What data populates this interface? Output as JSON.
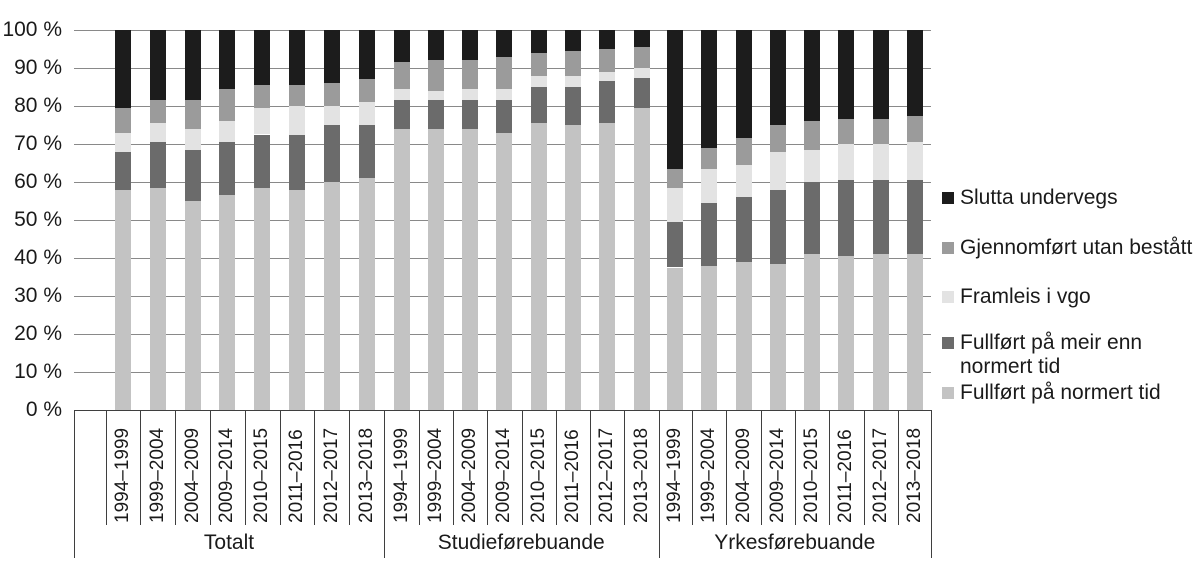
{
  "chart_data": {
    "type": "bar",
    "variant": "100-percent-stacked-column",
    "ylim": [
      0,
      100
    ],
    "grid": true,
    "yticks": [
      "0 %",
      "10 %",
      "20 %",
      "30 %",
      "40 %",
      "50 %",
      "60 %",
      "70 %",
      "80 %",
      "90 %",
      "100 %"
    ],
    "categories": [
      "1994–1999",
      "1999–2004",
      "2004–2009",
      "2009–2014",
      "2010–2015",
      "2011–2016",
      "2012–2017",
      "2013–2018"
    ],
    "colors": {
      "normert": "#c3c3c3",
      "meir": "#6b6b6b",
      "framleis": "#e3e3e3",
      "utan": "#9b9b9b",
      "slutta": "#1c1c1c"
    },
    "series_names": {
      "normert": "Fullført på normert tid",
      "meir": "Fullført på meir enn normert tid",
      "framleis": "Framleis i vgo",
      "utan": "Gjennomført utan bestått",
      "slutta": "Slutta undervegs"
    },
    "stack_order_bottom_to_top": [
      "normert",
      "meir",
      "framleis",
      "utan",
      "slutta"
    ],
    "groups": [
      {
        "label": "Totalt",
        "series": {
          "normert": [
            58,
            58.5,
            55,
            56.5,
            58.5,
            58,
            60,
            61
          ],
          "meir": [
            10,
            12,
            13.5,
            14,
            14,
            14.5,
            15,
            14
          ],
          "framleis": [
            5,
            5,
            5.5,
            5.5,
            7,
            7.5,
            5,
            6
          ],
          "utan": [
            6.5,
            6,
            7.5,
            8.5,
            6,
            5.5,
            6,
            6
          ],
          "slutta": [
            20.5,
            18.5,
            18.5,
            15.5,
            14.5,
            14.5,
            14,
            13
          ]
        }
      },
      {
        "label": "Studieførebuande",
        "series": {
          "normert": [
            74,
            74,
            74,
            73,
            75.5,
            75,
            75.5,
            79.5
          ],
          "meir": [
            7.5,
            7.5,
            7.5,
            8.5,
            9.5,
            10,
            11,
            8
          ],
          "framleis": [
            3,
            2.5,
            3,
            3,
            3,
            3,
            2.5,
            2.5
          ],
          "utan": [
            7,
            8,
            7.5,
            8.5,
            6,
            6.5,
            6,
            5.5
          ],
          "slutta": [
            8.5,
            8,
            8,
            7,
            6,
            5.5,
            5,
            4.5
          ]
        }
      },
      {
        "label": "Yrkesførebuande",
        "series": {
          "normert": [
            37.5,
            38,
            39,
            38.5,
            41,
            40.5,
            41,
            41
          ],
          "meir": [
            12,
            16.5,
            17,
            19.5,
            19,
            20,
            19.5,
            19.5
          ],
          "framleis": [
            9,
            9,
            8.5,
            10,
            8.5,
            9.5,
            9.5,
            10
          ],
          "utan": [
            5,
            5.5,
            7,
            7,
            7.5,
            6.5,
            6.5,
            7
          ],
          "slutta": [
            36.5,
            31,
            28.5,
            25,
            24,
            23.5,
            23.5,
            22.5
          ]
        }
      }
    ],
    "legend": [
      {
        "key": "slutta",
        "label": "Slutta undervegs"
      },
      {
        "key": "utan",
        "label": "Gjennomført utan bestått"
      },
      {
        "key": "framleis",
        "label": "Framleis i vgo"
      },
      {
        "key": "meir",
        "label": "Fullført på meir enn\nnormert tid"
      },
      {
        "key": "normert",
        "label": "Fullført på normert tid"
      }
    ],
    "legend_position": "right"
  }
}
